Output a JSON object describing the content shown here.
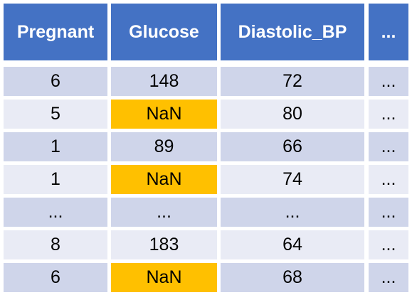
{
  "table": {
    "columns": [
      "Pregnant",
      "Glucose",
      "Diastolic_BP",
      "..."
    ],
    "rows": [
      [
        "6",
        "148",
        "72",
        "..."
      ],
      [
        "5",
        "NaN",
        "80",
        "..."
      ],
      [
        "1",
        "89",
        "66",
        "..."
      ],
      [
        "1",
        "NaN",
        "74",
        "..."
      ],
      [
        "...",
        "...",
        "...",
        "..."
      ],
      [
        "8",
        "183",
        "64",
        "..."
      ],
      [
        "6",
        "NaN",
        "68",
        "..."
      ]
    ],
    "missing_value_text": "NaN"
  },
  "colors": {
    "header_bg": "#4472c4",
    "header_text": "#ffffff",
    "row_odd_bg": "#cfd5ea",
    "row_even_bg": "#e9ebf5",
    "missing_bg": "#ffc000"
  }
}
